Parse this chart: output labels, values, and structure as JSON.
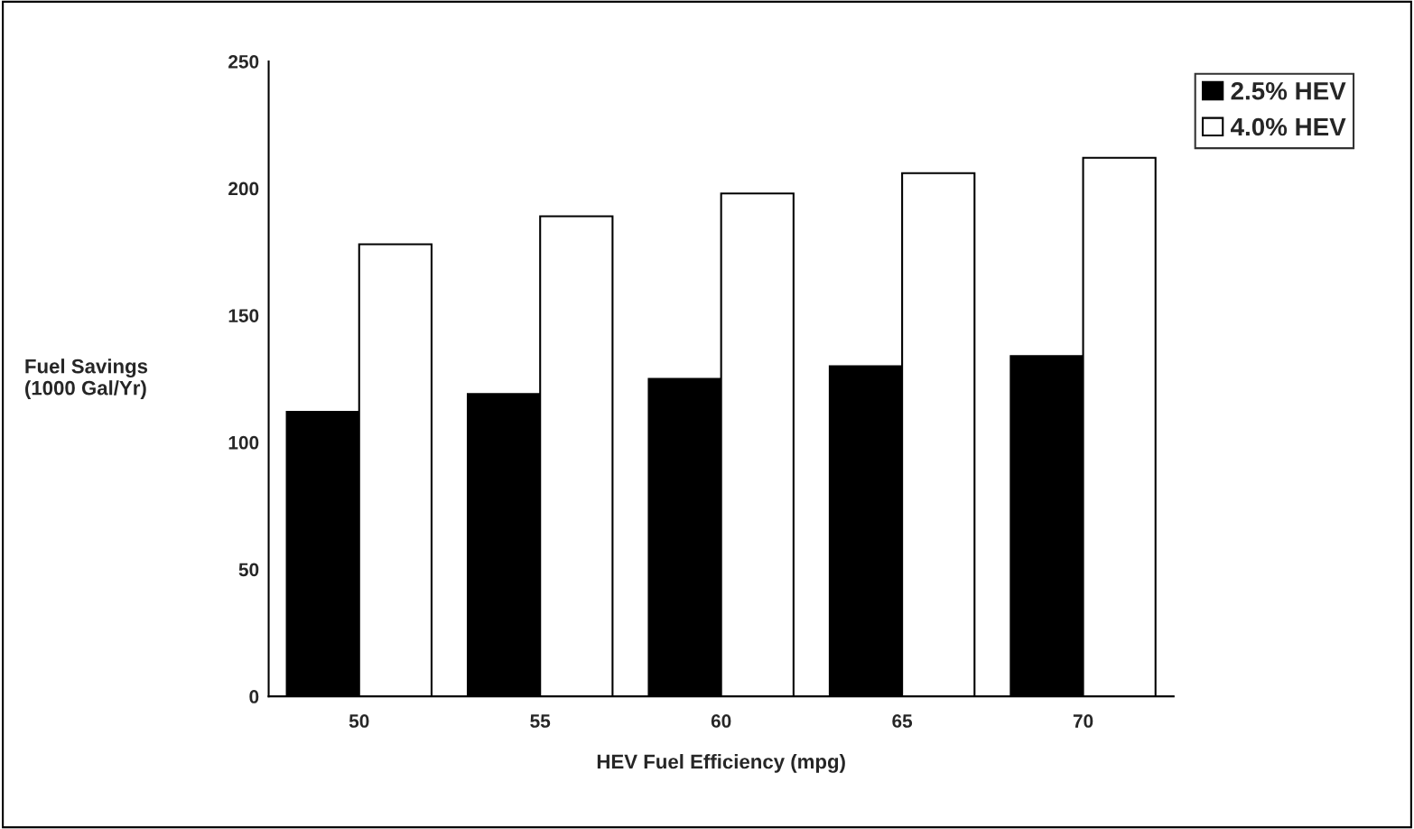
{
  "chart_data": {
    "type": "bar",
    "xlabel": "HEV Fuel Efficiency (mpg)",
    "ylabel": "Fuel Savings\n(1000 Gal/Yr)",
    "categories": [
      "50",
      "55",
      "60",
      "65",
      "70"
    ],
    "series": [
      {
        "name": "2.5% HEV",
        "color": "#000000",
        "values": [
          112,
          119,
          125,
          130,
          134
        ]
      },
      {
        "name": "4.0% HEV",
        "color": "#ffffff",
        "values": [
          178,
          189,
          198,
          206,
          212
        ]
      }
    ],
    "ylim": [
      0,
      250
    ],
    "yticks": [
      0,
      50,
      100,
      150,
      200,
      250
    ],
    "grid": false,
    "legend": "top right"
  }
}
